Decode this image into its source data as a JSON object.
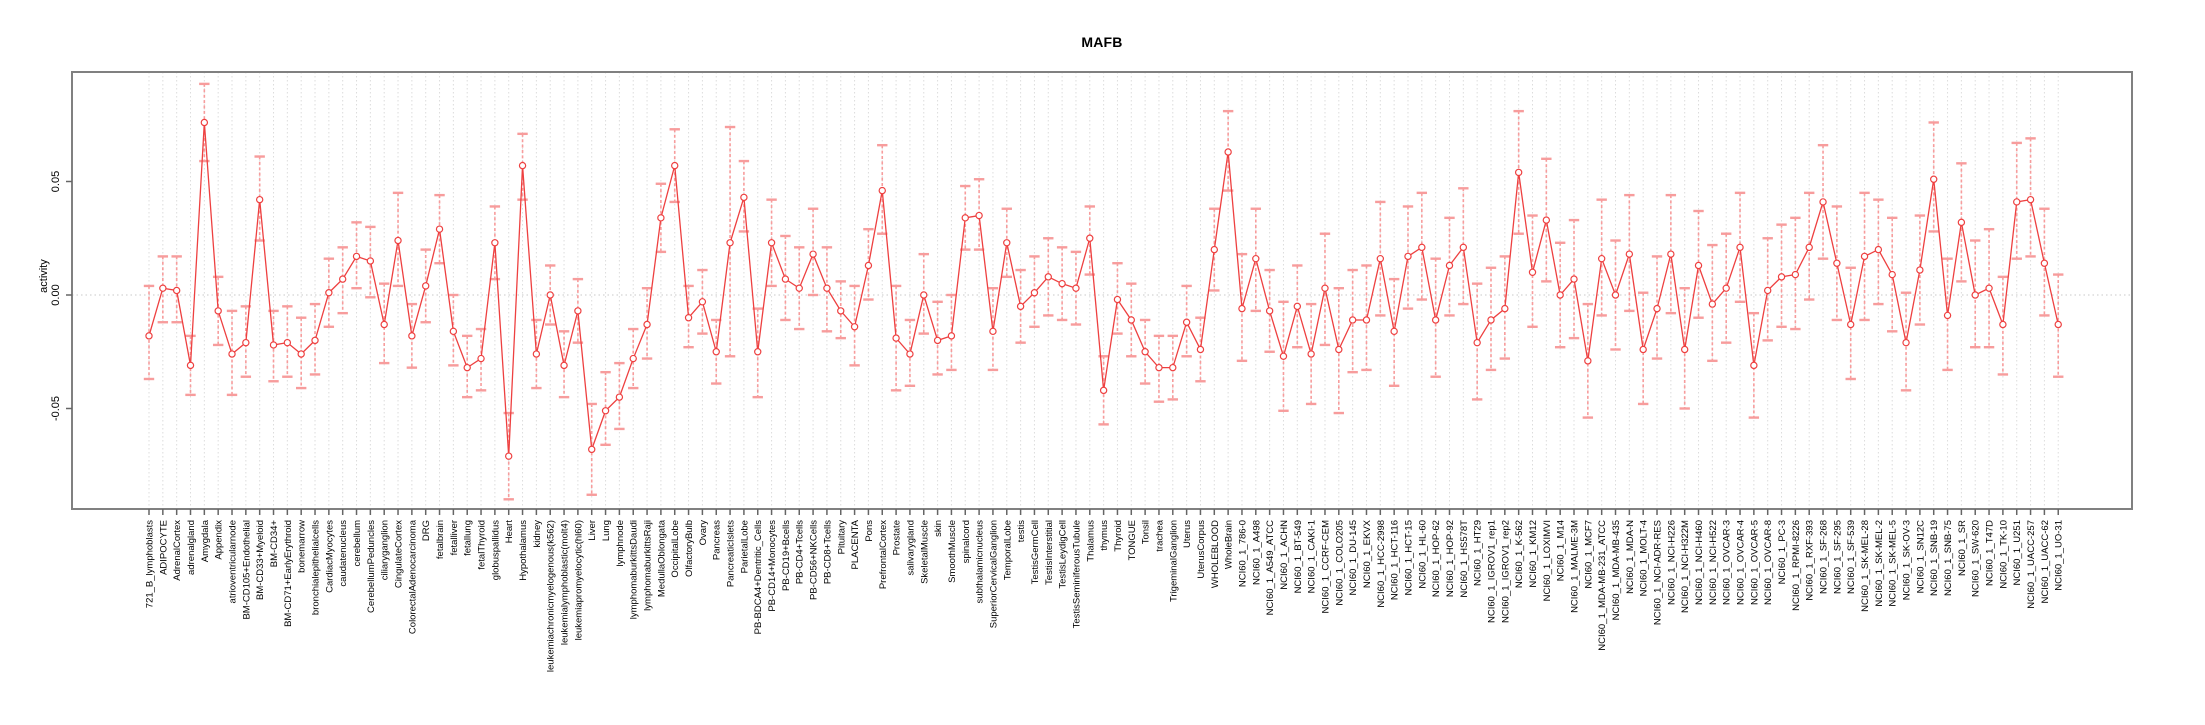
{
  "chart_data": {
    "type": "line",
    "title": "MAFB",
    "ylabel": "activity",
    "xlabel": "",
    "legend": "none",
    "grid": "vertical dashed gridline per category, dotted horizontal line at y=0",
    "x_tick_rotation": 90,
    "ylim": [
      -0.094,
      0.098
    ],
    "yticks": [
      -0.05,
      0.0,
      0.05
    ],
    "ytick_labels": [
      "-0.05",
      "0.00",
      "0.05"
    ],
    "marker": "open-circle",
    "series_color": "#ee4040",
    "errorbar_color": "#f79c9c",
    "gridline_color": "#dcdcdc",
    "box_color": "#808080",
    "categories": [
      "721_B_lymphoblasts",
      "ADIPOCYTE",
      "AdrenalCortex",
      "adrenalgland",
      "Amygdala",
      "Appendix",
      "atrioventricularnode",
      "BM-CD105+Endothelial",
      "BM-CD33+Myeloid",
      "BM-CD34+",
      "BM-CD71+EarlyErythroid",
      "bonemarrow",
      "bronchialepithelialcells",
      "CardiacMyocytes",
      "caudatenucleus",
      "cerebellum",
      "CerebellumPeduncles",
      "ciliaryganglion",
      "CingulateCortex",
      "ColorectalAdenocarcinoma",
      "DRG",
      "fetalbrain",
      "fetalliver",
      "fetallung",
      "fetalThyroid",
      "globuspallidus",
      "Heart",
      "Hypothalamus",
      "kidney",
      "leukemiachronicmyelogenous(k562)",
      "leukemialymphoblastic(molt4)",
      "leukemiapromyelocytic(hl60)",
      "Liver",
      "Lung",
      "lymphnode",
      "lymphomaburkittsDaudi",
      "lymphomaburkittsRaji",
      "MedullaOblongata",
      "OccipitalLobe",
      "OlfactoryBulb",
      "Ovary",
      "Pancreas",
      "PancreaticIslets",
      "ParietalLobe",
      "PB-BDCA4+Dentritic_Cells",
      "PB-CD14+Monocytes",
      "PB-CD19+Bcells",
      "PB-CD4+Tcells",
      "PB-CD56+NKCells",
      "PB-CD8+Tcells",
      "Pituitary",
      "PLACENTA",
      "Pons",
      "PrefrontalCortex",
      "Prostate",
      "salivarygland",
      "SkeletalMuscle",
      "skin",
      "SmoothMuscle",
      "spinalcord",
      "subthalamicnucleus",
      "SuperiorCervicalGanglion",
      "TemporalLobe",
      "testis",
      "TestisGermCell",
      "TestisInterstitial",
      "TestisLeydigCell",
      "TestisSeminiferousTubule",
      "Thalamus",
      "thymus",
      "Thyroid",
      "TONGUE",
      "Tonsil",
      "trachea",
      "TrigeminalGanglion",
      "Uterus",
      "UterusCorpus",
      "WHOLEBLOOD",
      "WholeBrain",
      "NCI60_1_786-0",
      "NCI60_1_A498",
      "NCI60_1_A549_ATCC",
      "NCI60_1_ACHN",
      "NCI60_1_BT-549",
      "NCI60_1_CAKI-1",
      "NCI60_1_CCRF-CEM",
      "NCI60_1_COLO205",
      "NCI60_1_DU-145",
      "NCI60_1_EKVX",
      "NCI60_1_HCC-2998",
      "NCI60_1_HCT-116",
      "NCI60_1_HCT-15",
      "NCI60_1_HL-60",
      "NCI60_1_HOP-62",
      "NCI60_1_HOP-92",
      "NCI60_1_HS578T",
      "NCI60_1_HT29",
      "NCI60_1_IGROV1_rep1",
      "NCI60_1_IGROV1_rep2",
      "NCI60_1_K-562",
      "NCI60_1_KM12",
      "NCI60_1_LOXIMVI",
      "NCI60_1_M14",
      "NCI60_1_MALME-3M",
      "NCI60_1_MCF7",
      "NCI60_1_MDA-MB-231_ATCC",
      "NCI60_1_MDA-MB-435",
      "NCI60_1_MDA-N",
      "NCI60_1_MOLT-4",
      "NCI60_1_NCI-ADR-RES",
      "NCI60_1_NCI-H226",
      "NCI60_1_NCI-H322M",
      "NCI60_1_NCI-H460",
      "NCI60_1_NCI-H522",
      "NCI60_1_OVCAR-3",
      "NCI60_1_OVCAR-4",
      "NCI60_1_OVCAR-5",
      "NCI60_1_OVCAR-8",
      "NCI60_1_PC-3",
      "NCI60_1_RPMI-8226",
      "NCI60_1_RXF-393",
      "NCI60_1_SF-268",
      "NCI60_1_SF-295",
      "NCI60_1_SF-539",
      "NCI60_1_SK-MEL-28",
      "NCI60_1_SK-MEL-2",
      "NCI60_1_SK-MEL-5",
      "NCI60_1_SK-OV-3",
      "NCI60_1_SN12C",
      "NCI60_1_SNB-19",
      "NCI60_1_SNB-75",
      "NCI60_1_SR",
      "NCI60_1_SW-620",
      "NCI60_1_T47D",
      "NCI60_1_TK-10",
      "NCI60_1_U251",
      "NCI60_1_UACC-257",
      "NCI60_1_UACC-62",
      "NCI60_1_UO-31"
    ],
    "values": [
      -0.018,
      0.003,
      0.002,
      -0.031,
      0.076,
      -0.007,
      -0.026,
      -0.021,
      0.042,
      -0.022,
      -0.021,
      -0.026,
      -0.02,
      0.001,
      0.007,
      0.017,
      0.015,
      -0.013,
      0.024,
      -0.018,
      0.004,
      0.029,
      -0.016,
      -0.032,
      -0.028,
      0.023,
      -0.071,
      0.057,
      -0.026,
      0.0,
      -0.031,
      -0.007,
      -0.068,
      -0.051,
      -0.045,
      -0.028,
      -0.013,
      0.034,
      0.057,
      -0.01,
      -0.003,
      -0.025,
      0.023,
      0.043,
      -0.025,
      0.023,
      0.007,
      0.003,
      0.018,
      0.003,
      -0.007,
      -0.014,
      0.013,
      0.046,
      -0.019,
      -0.026,
      0.0,
      -0.02,
      -0.018,
      0.034,
      0.035,
      -0.016,
      0.023,
      -0.005,
      0.001,
      0.008,
      0.005,
      0.003,
      0.025,
      -0.042,
      -0.002,
      -0.011,
      -0.025,
      -0.032,
      -0.032,
      -0.012,
      -0.024,
      0.02,
      0.063,
      -0.006,
      0.016,
      -0.007,
      -0.027,
      -0.005,
      -0.026,
      0.003,
      -0.024,
      -0.011,
      -0.011,
      0.016,
      -0.016,
      0.017,
      0.021,
      -0.011,
      0.013,
      0.021,
      -0.021,
      -0.011,
      -0.006,
      0.054,
      0.01,
      0.033,
      0.0,
      0.007,
      -0.029,
      0.016,
      0.0,
      0.018,
      -0.024,
      -0.006,
      0.018,
      -0.024,
      0.013,
      -0.004,
      0.003,
      0.021,
      -0.031,
      0.002,
      0.008,
      0.009,
      0.021,
      0.041,
      0.014,
      -0.013,
      0.017,
      0.02,
      0.009,
      -0.021,
      0.011,
      0.051,
      -0.009,
      0.032,
      0.0,
      0.003,
      -0.013,
      0.041,
      0.042,
      0.014,
      -0.013
    ],
    "err_lo": [
      -0.037,
      -0.012,
      -0.012,
      -0.044,
      0.059,
      -0.022,
      -0.044,
      -0.036,
      0.024,
      -0.038,
      -0.036,
      -0.041,
      -0.035,
      -0.014,
      -0.008,
      0.003,
      -0.001,
      -0.03,
      0.004,
      -0.032,
      -0.012,
      0.014,
      -0.031,
      -0.045,
      -0.042,
      0.007,
      -0.09,
      0.042,
      -0.041,
      -0.013,
      -0.045,
      -0.021,
      -0.088,
      -0.066,
      -0.059,
      -0.041,
      -0.028,
      0.019,
      0.041,
      -0.023,
      -0.017,
      -0.039,
      -0.027,
      0.028,
      -0.045,
      0.004,
      -0.011,
      -0.015,
      0.0,
      -0.016,
      -0.019,
      -0.031,
      -0.002,
      0.027,
      -0.042,
      -0.04,
      -0.017,
      -0.035,
      -0.033,
      0.02,
      0.02,
      -0.033,
      0.008,
      -0.021,
      -0.014,
      -0.009,
      -0.011,
      -0.013,
      0.009,
      -0.057,
      -0.017,
      -0.027,
      -0.039,
      -0.047,
      -0.046,
      -0.027,
      -0.038,
      0.002,
      0.046,
      -0.029,
      -0.007,
      -0.025,
      -0.051,
      -0.023,
      -0.048,
      -0.022,
      -0.052,
      -0.034,
      -0.033,
      -0.009,
      -0.04,
      -0.006,
      -0.002,
      -0.036,
      -0.009,
      -0.004,
      -0.046,
      -0.033,
      -0.028,
      0.027,
      -0.014,
      0.006,
      -0.023,
      -0.019,
      -0.054,
      -0.009,
      -0.024,
      -0.007,
      -0.048,
      -0.028,
      -0.008,
      -0.05,
      -0.01,
      -0.029,
      -0.021,
      -0.003,
      -0.054,
      -0.02,
      -0.014,
      -0.015,
      -0.002,
      0.016,
      -0.011,
      -0.037,
      -0.011,
      -0.004,
      -0.016,
      -0.042,
      -0.013,
      0.028,
      -0.033,
      0.006,
      -0.023,
      -0.023,
      -0.035,
      0.016,
      0.017,
      -0.009,
      -0.036
    ],
    "err_hi": [
      0.004,
      0.017,
      0.017,
      -0.018,
      0.093,
      0.008,
      -0.007,
      -0.005,
      0.061,
      -0.007,
      -0.005,
      -0.01,
      -0.004,
      0.016,
      0.021,
      0.032,
      0.03,
      0.005,
      0.045,
      -0.004,
      0.02,
      0.044,
      0.0,
      -0.018,
      -0.015,
      0.039,
      -0.052,
      0.071,
      -0.011,
      0.013,
      -0.016,
      0.007,
      -0.048,
      -0.034,
      -0.03,
      -0.015,
      0.003,
      0.049,
      0.073,
      0.004,
      0.011,
      -0.011,
      0.074,
      0.059,
      -0.006,
      0.042,
      0.026,
      0.021,
      0.038,
      0.021,
      0.006,
      0.004,
      0.029,
      0.066,
      0.004,
      -0.011,
      0.018,
      -0.003,
      0.0,
      0.048,
      0.051,
      0.003,
      0.038,
      0.011,
      0.017,
      0.025,
      0.021,
      0.019,
      0.039,
      -0.027,
      0.014,
      0.005,
      -0.011,
      -0.018,
      -0.018,
      0.004,
      -0.01,
      0.038,
      0.081,
      0.018,
      0.038,
      0.011,
      -0.003,
      0.013,
      -0.004,
      0.027,
      0.003,
      0.011,
      0.013,
      0.041,
      0.007,
      0.039,
      0.045,
      0.016,
      0.034,
      0.047,
      0.005,
      0.012,
      0.017,
      0.081,
      0.035,
      0.06,
      0.023,
      0.033,
      -0.004,
      0.042,
      0.024,
      0.044,
      0.001,
      0.017,
      0.044,
      0.003,
      0.037,
      0.022,
      0.027,
      0.045,
      -0.008,
      0.025,
      0.031,
      0.034,
      0.045,
      0.066,
      0.039,
      0.012,
      0.045,
      0.042,
      0.034,
      0.001,
      0.035,
      0.076,
      0.016,
      0.058,
      0.024,
      0.029,
      0.008,
      0.067,
      0.069,
      0.038,
      0.009
    ]
  }
}
